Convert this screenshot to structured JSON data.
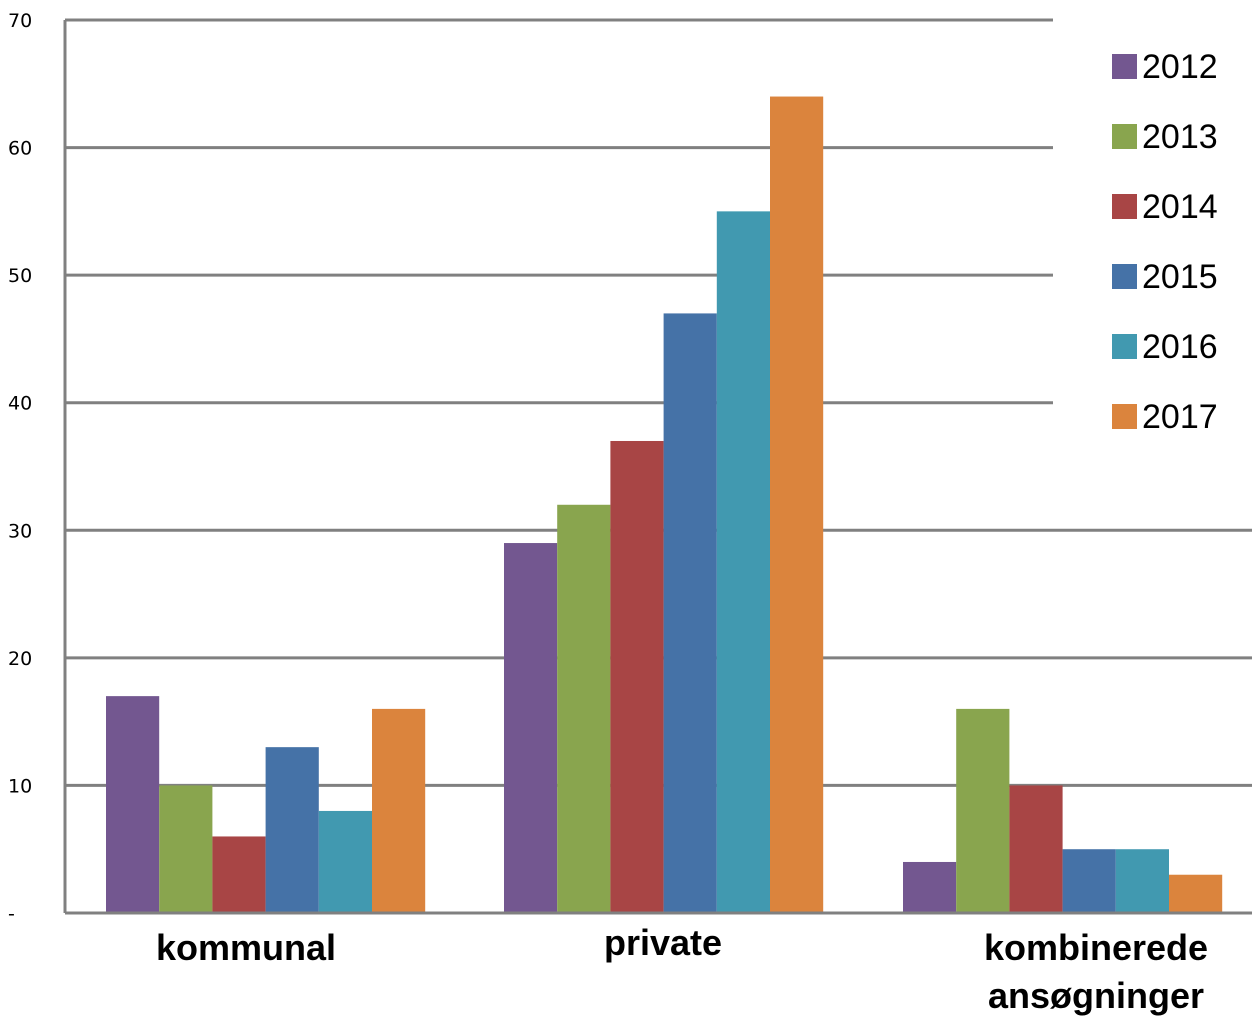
{
  "chart_data": {
    "type": "bar",
    "title": "",
    "xlabel": "",
    "ylabel": "",
    "ylim": [
      0,
      70
    ],
    "yticks": [
      {
        "value": 0,
        "label": "-"
      },
      {
        "value": 10,
        "label": "10"
      },
      {
        "value": 20,
        "label": "20"
      },
      {
        "value": 30,
        "label": "30"
      },
      {
        "value": 40,
        "label": "40"
      },
      {
        "value": 50,
        "label": "50"
      },
      {
        "value": 60,
        "label": "60"
      },
      {
        "value": 70,
        "label": "70"
      }
    ],
    "categories": [
      "kommunal",
      "private",
      "kombinerede ansøgninger"
    ],
    "category_lines": [
      [
        "kommunal"
      ],
      [
        "private"
      ],
      [
        "kombinerede",
        "ansøgninger"
      ]
    ],
    "grid": true,
    "legend": "right",
    "series": [
      {
        "name": "2012",
        "color": "#735790",
        "values": [
          17,
          29,
          4
        ]
      },
      {
        "name": "2013",
        "color": "#89a54e",
        "values": [
          10,
          32,
          16
        ]
      },
      {
        "name": "2014",
        "color": "#a84545",
        "values": [
          6,
          37,
          10
        ]
      },
      {
        "name": "2015",
        "color": "#4572a7",
        "values": [
          13,
          47,
          5
        ]
      },
      {
        "name": "2016",
        "color": "#4199b0",
        "values": [
          8,
          55,
          5
        ]
      },
      {
        "name": "2017",
        "color": "#db843d",
        "values": [
          16,
          64,
          3
        ]
      }
    ]
  }
}
